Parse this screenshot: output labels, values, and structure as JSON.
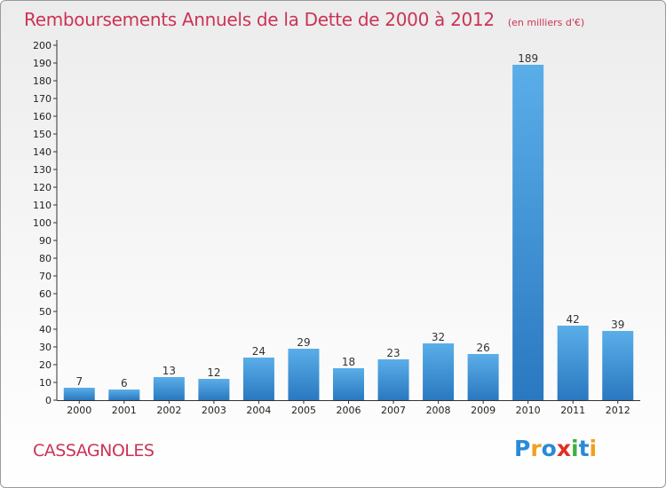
{
  "title": "Remboursements Annuels de la Dette de 2000 à 2012",
  "unit": "(en milliers d'€)",
  "commune": "CASSAGNOLES",
  "logo": {
    "letters": [
      "P",
      "r",
      "o",
      "x",
      "i",
      "t",
      "i"
    ],
    "colors": [
      "#2a8ad8",
      "#f0a020",
      "#2a8ad8",
      "#e03020",
      "#40b040",
      "#2a8ad8",
      "#f0a020"
    ]
  },
  "colors": {
    "title": "#cc3355",
    "bar_light": "#5aaee8",
    "bar_dark": "#2a78c0",
    "axis": "#333333"
  },
  "chart_data": {
    "type": "bar",
    "categories": [
      "2000",
      "2001",
      "2002",
      "2003",
      "2004",
      "2005",
      "2006",
      "2007",
      "2008",
      "2009",
      "2010",
      "2011",
      "2012"
    ],
    "values": [
      7,
      6,
      13,
      12,
      24,
      29,
      18,
      23,
      32,
      26,
      189,
      42,
      39
    ],
    "ylim": [
      0,
      200
    ],
    "yticks": [
      0,
      10,
      20,
      30,
      40,
      50,
      60,
      70,
      80,
      90,
      100,
      110,
      120,
      130,
      140,
      150,
      160,
      170,
      180,
      190,
      200
    ],
    "grid": false,
    "data_labels": true
  }
}
